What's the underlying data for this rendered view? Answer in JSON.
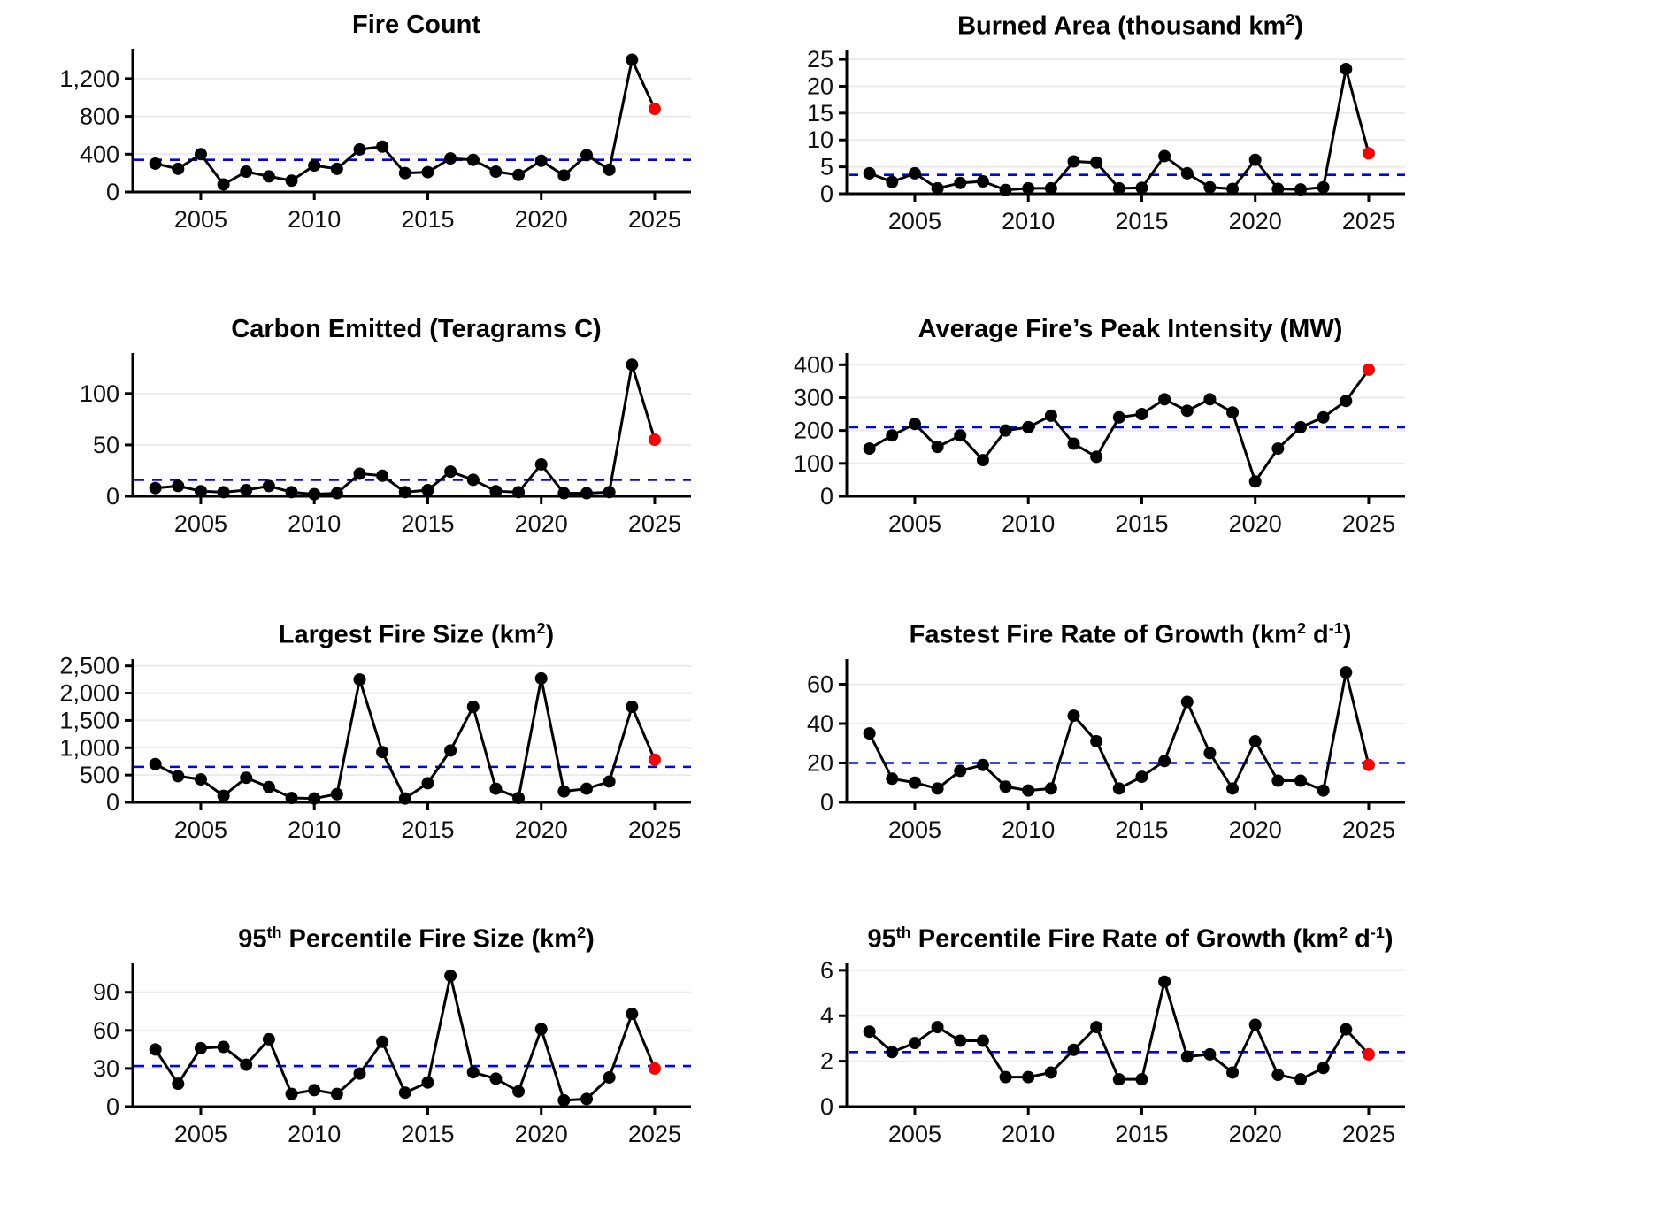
{
  "style": {
    "line_color": "#000000",
    "point_color": "#000000",
    "highlight_color": "#ff0000",
    "mean_line_color": "#0000ff",
    "grid_color": "#ebebeb",
    "axis_color": "#000000",
    "tick_text_color": "#111111",
    "background": "#ffffff"
  },
  "x_years": [
    2003,
    2004,
    2005,
    2006,
    2007,
    2008,
    2009,
    2010,
    2011,
    2012,
    2013,
    2014,
    2015,
    2016,
    2017,
    2018,
    2019,
    2020,
    2021,
    2022,
    2023,
    2024,
    2025
  ],
  "x_ticks": [
    {
      "v": 2005,
      "label": "2005"
    },
    {
      "v": 2010,
      "label": "2010"
    },
    {
      "v": 2015,
      "label": "2015"
    },
    {
      "v": 2020,
      "label": "2020"
    },
    {
      "v": 2025,
      "label": "2025"
    }
  ],
  "chart_data": [
    {
      "type": "line",
      "title": "Fire Count",
      "title_segments": [
        {
          "t": "Fire Count"
        }
      ],
      "xlabel": "",
      "ylabel": "",
      "ylim": [
        0,
        1480
      ],
      "yticks": [
        {
          "v": 0,
          "label": "0"
        },
        {
          "v": 400,
          "label": "400"
        },
        {
          "v": 800,
          "label": "800"
        },
        {
          "v": 1200,
          "label": "1,200"
        }
      ],
      "mean_dashed_line": 340,
      "values": [
        300,
        245,
        400,
        80,
        215,
        165,
        120,
        280,
        245,
        450,
        480,
        200,
        210,
        355,
        340,
        215,
        180,
        330,
        175,
        390,
        235,
        1400,
        880
      ],
      "highlight_last_point": true
    },
    {
      "type": "line",
      "title": "Burned Area (thousand km²)",
      "title_segments": [
        {
          "t": "Burned Area (thousand km"
        },
        {
          "t": "2",
          "sup": true
        },
        {
          "t": ")"
        }
      ],
      "xlabel": "",
      "ylabel": "",
      "ylim": [
        0,
        26
      ],
      "yticks": [
        {
          "v": 0,
          "label": "0"
        },
        {
          "v": 5,
          "label": "5"
        },
        {
          "v": 10,
          "label": "10"
        },
        {
          "v": 15,
          "label": "15"
        },
        {
          "v": 20,
          "label": "20"
        },
        {
          "v": 25,
          "label": "25"
        }
      ],
      "mean_dashed_line": 3.5,
      "values": [
        3.8,
        2.2,
        3.8,
        1.0,
        2.0,
        2.3,
        0.7,
        1.0,
        1.0,
        6.0,
        5.8,
        1.0,
        1.1,
        7.0,
        3.8,
        1.2,
        0.9,
        6.3,
        0.9,
        0.8,
        1.2,
        23.2,
        7.5
      ],
      "highlight_last_point": true
    },
    {
      "type": "line",
      "title": "Carbon Emitted (Teragrams C)",
      "title_segments": [
        {
          "t": "Carbon Emitted (Teragrams C)"
        }
      ],
      "xlabel": "",
      "ylabel": "",
      "ylim": [
        0,
        136
      ],
      "yticks": [
        {
          "v": 0,
          "label": "0"
        },
        {
          "v": 50,
          "label": "50"
        },
        {
          "v": 100,
          "label": "100"
        }
      ],
      "mean_dashed_line": 16,
      "values": [
        8,
        10,
        5,
        4,
        6,
        10,
        4,
        2,
        3,
        22,
        20,
        4,
        6,
        24,
        16,
        5,
        4,
        31,
        3,
        3,
        4,
        128,
        55
      ],
      "highlight_last_point": true
    },
    {
      "type": "line",
      "title": "Average Fire’s Peak Intensity (MW)",
      "title_segments": [
        {
          "t": "Average Fire’s Peak Intensity (MW)"
        }
      ],
      "xlabel": "",
      "ylabel": "",
      "ylim": [
        0,
        425
      ],
      "yticks": [
        {
          "v": 0,
          "label": "0"
        },
        {
          "v": 100,
          "label": "100"
        },
        {
          "v": 200,
          "label": "200"
        },
        {
          "v": 300,
          "label": "300"
        },
        {
          "v": 400,
          "label": "400"
        }
      ],
      "mean_dashed_line": 210,
      "values": [
        145,
        185,
        220,
        150,
        185,
        110,
        200,
        210,
        245,
        160,
        120,
        240,
        250,
        295,
        260,
        295,
        255,
        45,
        145,
        210,
        240,
        290,
        385
      ],
      "highlight_last_point": true
    },
    {
      "type": "line",
      "title": "Largest Fire Size (km²)",
      "title_segments": [
        {
          "t": "Largest Fire Size (km"
        },
        {
          "t": "2",
          "sup": true
        },
        {
          "t": ")"
        }
      ],
      "xlabel": "",
      "ylabel": "",
      "ylim": [
        0,
        2560
      ],
      "yticks": [
        {
          "v": 0,
          "label": "0"
        },
        {
          "v": 500,
          "label": "500"
        },
        {
          "v": 1000,
          "label": "1,000"
        },
        {
          "v": 1500,
          "label": "1,500"
        },
        {
          "v": 2000,
          "label": "2,000"
        },
        {
          "v": 2500,
          "label": "2,500"
        }
      ],
      "mean_dashed_line": 650,
      "values": [
        700,
        480,
        420,
        120,
        450,
        280,
        80,
        70,
        150,
        2250,
        920,
        70,
        350,
        950,
        1750,
        250,
        80,
        2270,
        200,
        250,
        380,
        1750,
        780
      ],
      "highlight_last_point": true
    },
    {
      "type": "line",
      "title": "Fastest Fire Rate of Growth (km² d⁻¹)",
      "title_segments": [
        {
          "t": "Fastest Fire Rate of Growth (km"
        },
        {
          "t": "2",
          "sup": true
        },
        {
          "t": " d"
        },
        {
          "t": "-1",
          "sup": true
        },
        {
          "t": ")"
        }
      ],
      "xlabel": "",
      "ylabel": "",
      "ylim": [
        0,
        71
      ],
      "yticks": [
        {
          "v": 0,
          "label": "0"
        },
        {
          "v": 20,
          "label": "20"
        },
        {
          "v": 40,
          "label": "40"
        },
        {
          "v": 60,
          "label": "60"
        }
      ],
      "mean_dashed_line": 20,
      "values": [
        35,
        12,
        10,
        7,
        16,
        19,
        8,
        6,
        7,
        44,
        31,
        7,
        13,
        21,
        51,
        25,
        7,
        31,
        11,
        11,
        6,
        66,
        19
      ],
      "highlight_last_point": true
    },
    {
      "type": "line",
      "title": "95th Percentile Fire Size (km²)",
      "title_segments": [
        {
          "t": "95"
        },
        {
          "t": "th",
          "sup": true
        },
        {
          "t": " Percentile Fire Size (km"
        },
        {
          "t": "2",
          "sup": true
        },
        {
          "t": ")"
        }
      ],
      "xlabel": "",
      "ylabel": "",
      "ylim": [
        0,
        110
      ],
      "yticks": [
        {
          "v": 0,
          "label": "0"
        },
        {
          "v": 30,
          "label": "30"
        },
        {
          "v": 60,
          "label": "60"
        },
        {
          "v": 90,
          "label": "90"
        }
      ],
      "mean_dashed_line": 32,
      "values": [
        45,
        18,
        46,
        47,
        33,
        53,
        10,
        13,
        10,
        26,
        51,
        11,
        19,
        103,
        27,
        22,
        12,
        61,
        5,
        6,
        23,
        73,
        30
      ],
      "highlight_last_point": true
    },
    {
      "type": "line",
      "title": "95th Percentile Fire Rate of Growth (km² d⁻¹)",
      "title_segments": [
        {
          "t": "95"
        },
        {
          "t": "th",
          "sup": true
        },
        {
          "t": " Percentile Fire Rate of Growth (km"
        },
        {
          "t": "2",
          "sup": true
        },
        {
          "t": " d"
        },
        {
          "t": "-1",
          "sup": true
        },
        {
          "t": ")"
        }
      ],
      "xlabel": "",
      "ylabel": "",
      "ylim": [
        0,
        6.15
      ],
      "yticks": [
        {
          "v": 0,
          "label": "0"
        },
        {
          "v": 2,
          "label": "2"
        },
        {
          "v": 4,
          "label": "4"
        },
        {
          "v": 6,
          "label": "6"
        }
      ],
      "mean_dashed_line": 2.4,
      "values": [
        3.3,
        2.4,
        2.8,
        3.5,
        2.9,
        2.9,
        1.3,
        1.3,
        1.5,
        2.5,
        3.5,
        1.2,
        1.2,
        5.5,
        2.2,
        2.3,
        1.5,
        3.6,
        1.4,
        1.2,
        1.7,
        3.4,
        2.3
      ],
      "highlight_last_point": true
    }
  ]
}
